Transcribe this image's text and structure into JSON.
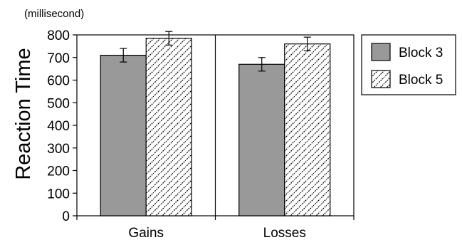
{
  "chart_data": {
    "type": "bar",
    "title": "",
    "unit_label": "(millisecond)",
    "ylabel": "Reaction Time",
    "xlabel": "",
    "categories": [
      "Gains",
      "Losses"
    ],
    "ylim": [
      0,
      800
    ],
    "yticks": [
      0,
      100,
      200,
      300,
      400,
      500,
      600,
      700,
      800
    ],
    "grid": false,
    "legend_position": "right",
    "series": [
      {
        "name": "Block 3",
        "values": [
          710,
          670
        ],
        "errors": [
          30,
          30
        ],
        "fill": "#999999",
        "pattern": "solid"
      },
      {
        "name": "Block 5",
        "values": [
          785,
          760
        ],
        "errors": [
          30,
          30
        ],
        "fill": "#ffffff",
        "pattern": "diagonal-hatch"
      }
    ]
  }
}
